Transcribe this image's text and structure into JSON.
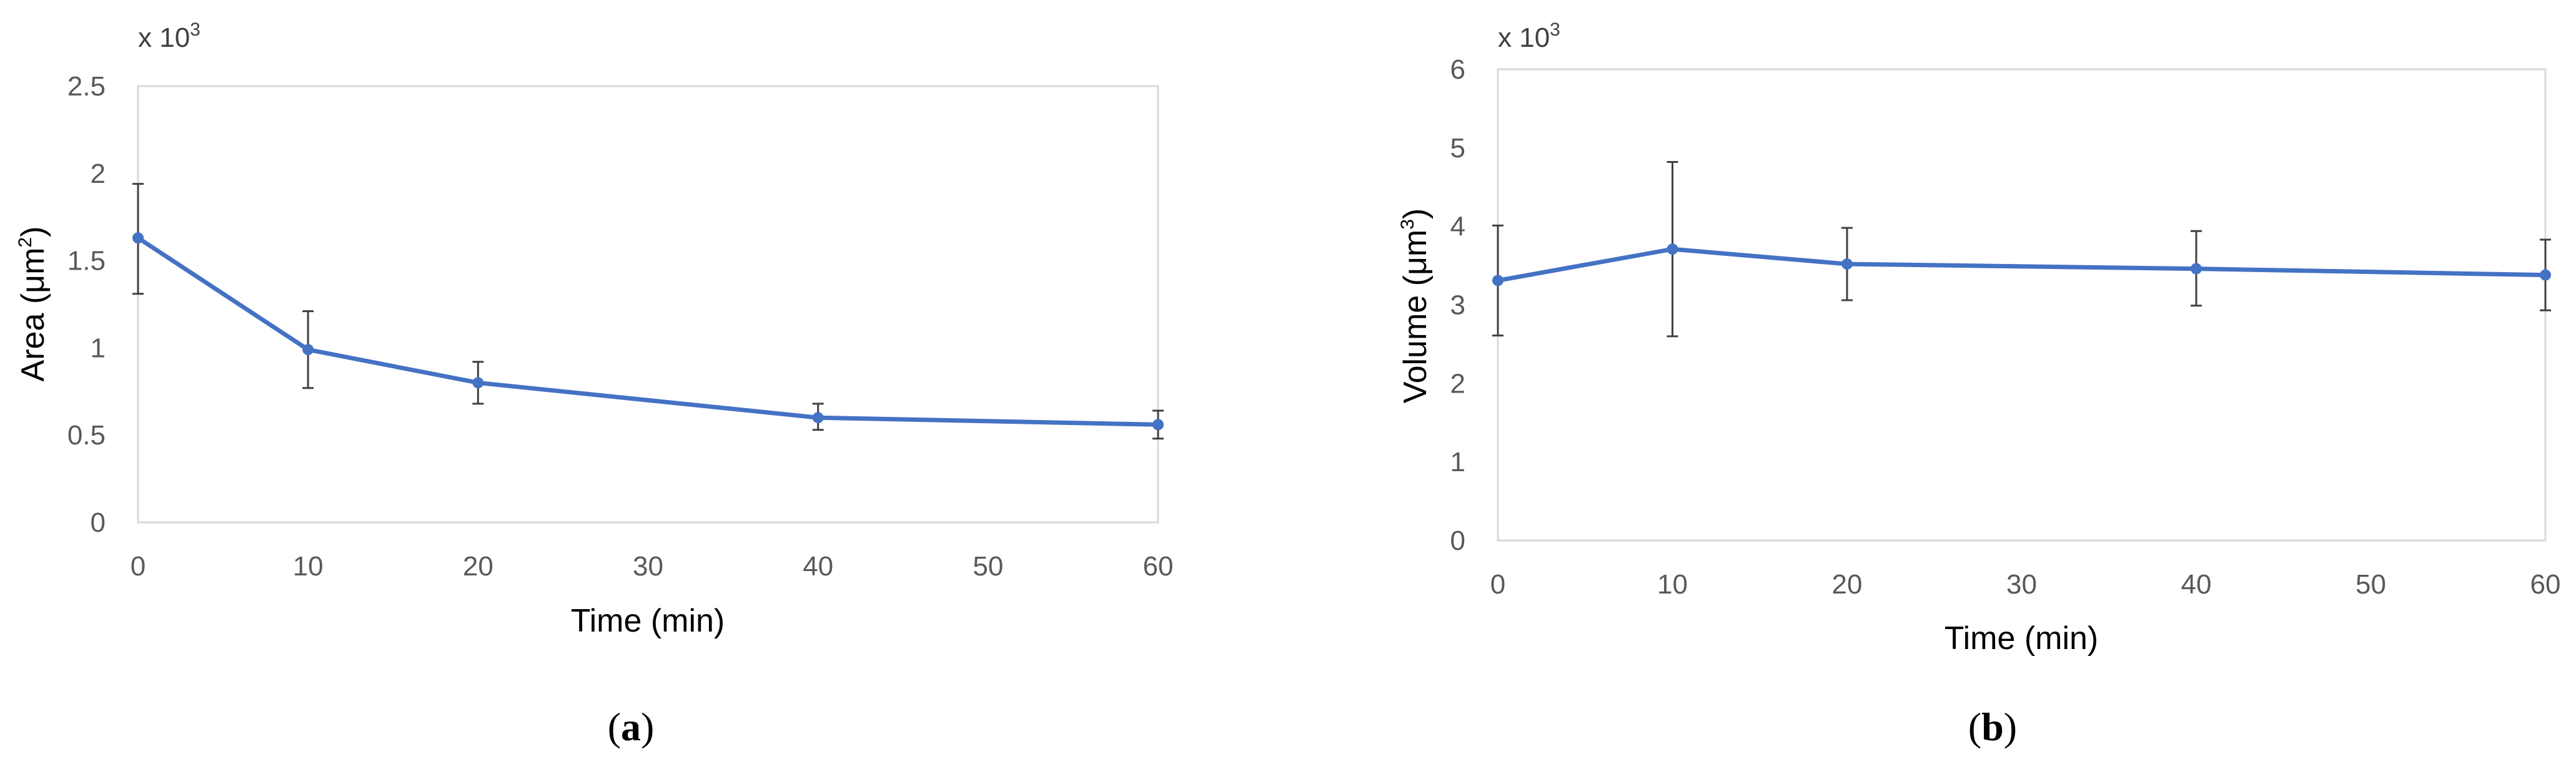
{
  "colors": {
    "series": "#4472c4",
    "error_bar": "#404040",
    "frame": "#d9d9d9",
    "tick_text": "#595959"
  },
  "chart_data": [
    {
      "type": "line",
      "panel_open": "(",
      "panel_letter": "a",
      "panel_close": ")",
      "multiplier_prefix": "x 10",
      "multiplier_exp": "3",
      "xlabel": "Time (min)",
      "ylabel_main": "Area (μm",
      "ylabel_sup": "2",
      "ylabel_end": ")",
      "xlim": [
        0,
        60
      ],
      "ylim": [
        0,
        2.5
      ],
      "x_ticks": [
        0,
        10,
        20,
        30,
        40,
        50,
        60
      ],
      "y_ticks": [
        0,
        0.5,
        1,
        1.5,
        2,
        2.5
      ],
      "x_tick_labels": [
        "0",
        "10",
        "20",
        "30",
        "40",
        "50",
        "60"
      ],
      "y_tick_labels": [
        "0",
        "0.5",
        "1",
        "1.5",
        "2",
        "2.5"
      ],
      "grid": false,
      "series": [
        {
          "x": [
            0,
            10,
            20,
            40,
            60
          ],
          "y": [
            1.63,
            0.99,
            0.8,
            0.6,
            0.56
          ],
          "err_low": [
            1.31,
            0.77,
            0.68,
            0.53,
            0.48
          ],
          "err_high": [
            1.94,
            1.21,
            0.92,
            0.68,
            0.64
          ]
        }
      ]
    },
    {
      "type": "line",
      "panel_open": "(",
      "panel_letter": "b",
      "panel_close": ")",
      "multiplier_prefix": "x 10",
      "multiplier_exp": "3",
      "xlabel": "Time (min)",
      "ylabel_main": "Volume (μm",
      "ylabel_sup": "3",
      "ylabel_end": ")",
      "xlim": [
        0,
        60
      ],
      "ylim": [
        0,
        6
      ],
      "x_ticks": [
        0,
        10,
        20,
        30,
        40,
        50,
        60
      ],
      "y_ticks": [
        0,
        1,
        2,
        3,
        4,
        5,
        6
      ],
      "x_tick_labels": [
        "0",
        "10",
        "20",
        "30",
        "40",
        "50",
        "60"
      ],
      "y_tick_labels": [
        "0",
        "1",
        "2",
        "3",
        "4",
        "5",
        "6"
      ],
      "grid": false,
      "series": [
        {
          "x": [
            0,
            10,
            20,
            40,
            60
          ],
          "y": [
            3.31,
            3.71,
            3.52,
            3.46,
            3.38
          ],
          "err_low": [
            2.61,
            2.6,
            3.06,
            2.99,
            2.93
          ],
          "err_high": [
            4.01,
            4.82,
            3.98,
            3.94,
            3.83
          ]
        }
      ]
    }
  ]
}
